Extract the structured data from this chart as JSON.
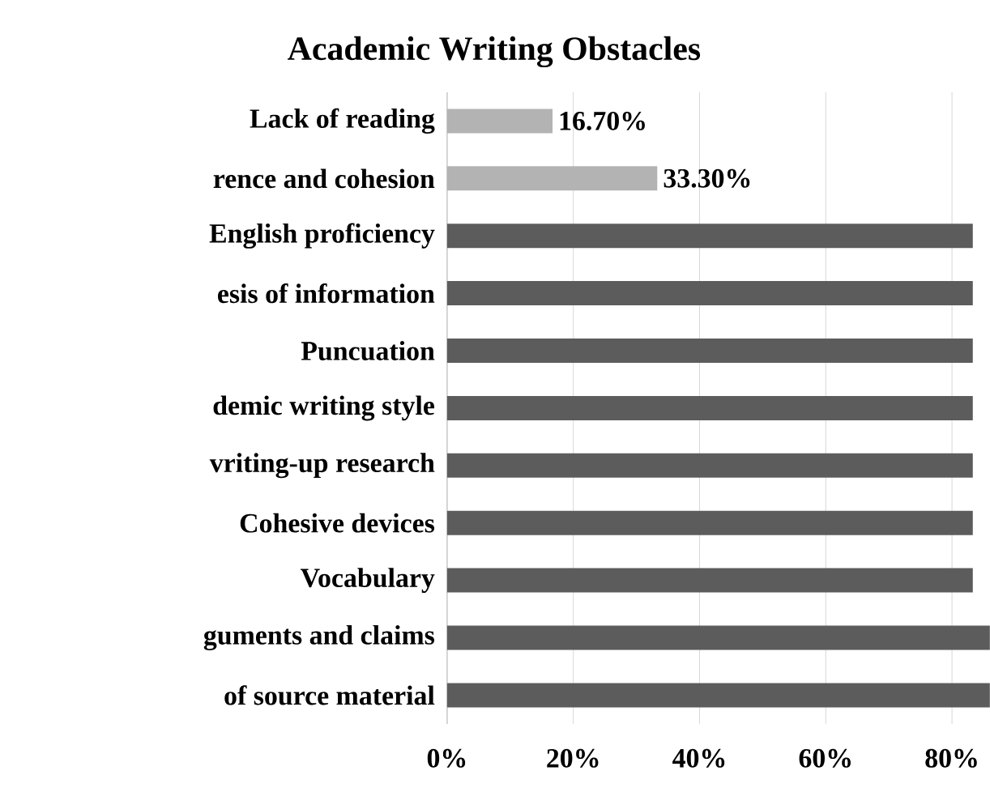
{
  "chart_data": {
    "type": "bar",
    "orientation": "horizontal",
    "title": "Academic Writing Obstacles",
    "categories": [
      "Lack of reading",
      "rence and cohesion",
      "English proficiency",
      "esis of information",
      "Puncuation",
      "demic writing style",
      "vriting-up research",
      "Cohesive devices",
      "Vocabulary",
      "guments and claims",
      "of source material"
    ],
    "values": [
      16.7,
      33.3,
      83.3,
      83.3,
      83.3,
      83.3,
      83.3,
      83.3,
      83.3,
      86,
      86
    ],
    "colors": [
      "#b3b3b3",
      "#b3b3b3",
      "#5c5c5c",
      "#5c5c5c",
      "#5c5c5c",
      "#5c5c5c",
      "#5c5c5c",
      "#5c5c5c",
      "#5c5c5c",
      "#5c5c5c",
      "#5c5c5c"
    ],
    "value_labels": [
      "16.70%",
      "33.30%",
      null,
      null,
      null,
      null,
      null,
      null,
      null,
      null,
      null
    ],
    "xlim": [
      0,
      86
    ],
    "xticks": [
      {
        "value": 0,
        "label": "0%"
      },
      {
        "value": 20,
        "label": "20%"
      },
      {
        "value": 40,
        "label": "40%"
      },
      {
        "value": 60,
        "label": "60%"
      },
      {
        "value": 80,
        "label": "80%"
      }
    ],
    "grid": "x"
  }
}
